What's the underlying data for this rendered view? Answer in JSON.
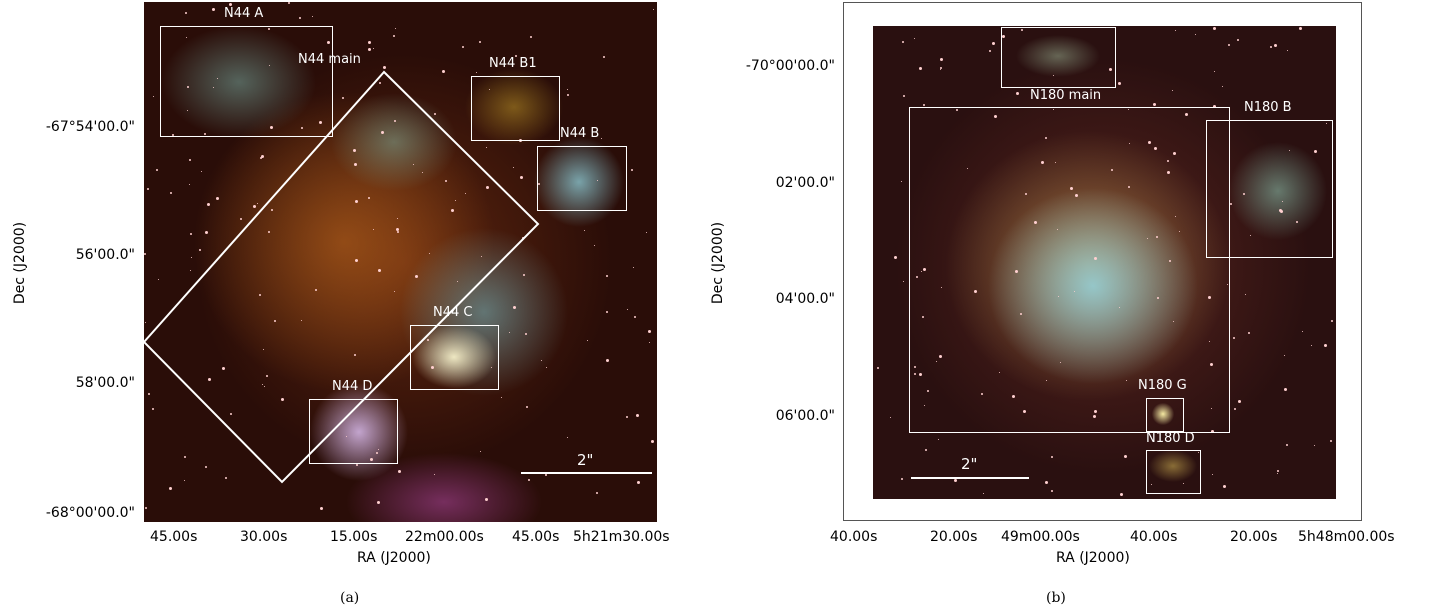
{
  "panel_a": {
    "regions": [
      "N44 A",
      "N44 main",
      "N44 B1",
      "N44 B",
      "N44 C",
      "N44 D"
    ],
    "scale_bar": "2\"",
    "dec_ticks": [
      "-67°54'00.0\"",
      "56'00.0\"",
      "58'00.0\"",
      "-68°00'00.0\""
    ],
    "ra_ticks": [
      "45.00s",
      "30.00s",
      "15.00s",
      "22m00.00s",
      "45.00s",
      "5h21m30.00s"
    ],
    "xlabel": "RA (J2000)",
    "ylabel": "Dec (J2000)",
    "caption": "(a)"
  },
  "panel_b": {
    "regions": [
      "N180 main",
      "N180 B",
      "N180 G",
      "N180 D"
    ],
    "scale_bar": "2\"",
    "dec_ticks": [
      "-70°00'00.0\"",
      "02'00.0\"",
      "04'00.0\"",
      "06'00.0\""
    ],
    "ra_ticks": [
      "40.00s",
      "20.00s",
      "49m00.00s",
      "40.00s",
      "20.00s",
      "5h48m00.00s"
    ],
    "xlabel": "RA (J2000)",
    "ylabel": "Dec (J2000)",
    "caption": "(b)"
  },
  "colors": {
    "overlay": "#ffffff",
    "text": "#000000"
  }
}
